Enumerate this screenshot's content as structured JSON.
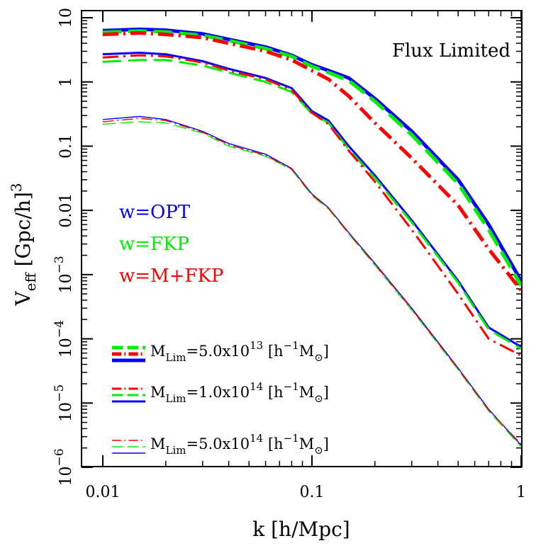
{
  "chart_data": {
    "type": "line",
    "title": "",
    "annotation": "Flux Limited",
    "xlabel": "k [h/Mpc]",
    "ylabel": "V_eff [Gpc/h]^3",
    "xscale": "log",
    "yscale": "log",
    "xlim": [
      0.01,
      1
    ],
    "ylim": [
      1e-06,
      10
    ],
    "x_ticks": [
      {
        "value": 0.01,
        "label": "0.01"
      },
      {
        "value": 0.1,
        "label": "0.1"
      },
      {
        "value": 1,
        "label": "1"
      }
    ],
    "y_ticks": [
      {
        "value": 10,
        "label": "10",
        "exp": ""
      },
      {
        "value": 1,
        "label": "1",
        "exp": ""
      },
      {
        "value": 0.1,
        "label": "0.1",
        "exp": ""
      },
      {
        "value": 0.01,
        "label": "0.01",
        "exp": ""
      },
      {
        "value": 0.001,
        "label": "10",
        "exp": "−3"
      },
      {
        "value": 0.0001,
        "label": "10",
        "exp": "−4"
      },
      {
        "value": 1e-05,
        "label": "10",
        "exp": "−5"
      },
      {
        "value": 1e-06,
        "label": "10",
        "exp": "−6"
      }
    ],
    "weight_legend": [
      {
        "label": "w=OPT",
        "color": "#0000ff"
      },
      {
        "label": "w=FKP",
        "color": "#00ee00"
      },
      {
        "label": "w=M+FKP",
        "color": "#ff0000"
      }
    ],
    "mass_legend": [
      {
        "label_main": "M",
        "label_sub": "Lim",
        "label_value": "=5.0x10",
        "label_exp": "13",
        "label_unit": "[h",
        "label_unit_exp": "−1",
        "label_unit_tail": "M",
        "label_unit_sub": "⊙",
        "label_close": "]",
        "width": "thick"
      },
      {
        "label_main": "M",
        "label_sub": "Lim",
        "label_value": "=1.0x10",
        "label_exp": "14",
        "label_unit": "[h",
        "label_unit_exp": "−1",
        "label_unit_tail": "M",
        "label_unit_sub": "⊙",
        "label_close": "]",
        "width": "medium"
      },
      {
        "label_main": "M",
        "label_sub": "Lim",
        "label_value": "=5.0x10",
        "label_exp": "14",
        "label_unit": "[h",
        "label_unit_exp": "−1",
        "label_unit_tail": "M",
        "label_unit_sub": "⊙",
        "label_close": "]",
        "width": "thin"
      }
    ],
    "x": [
      0.01,
      0.015,
      0.02,
      0.03,
      0.04,
      0.06,
      0.08,
      0.1,
      0.12,
      0.15,
      0.2,
      0.3,
      0.5,
      0.7,
      1.0
    ],
    "series": [
      {
        "mass": "5.0x10^13",
        "weight": "OPT",
        "color": "#0000ff",
        "dash": "solid",
        "values": [
          6.3,
          6.6,
          6.4,
          5.6,
          4.6,
          3.5,
          2.6,
          1.85,
          1.5,
          1.15,
          0.55,
          0.17,
          0.03,
          0.006,
          0.0008
        ]
      },
      {
        "mass": "5.0x10^13",
        "weight": "FKP",
        "color": "#00ee00",
        "dash": "long-dash",
        "values": [
          5.9,
          6.2,
          6.0,
          5.3,
          4.4,
          3.3,
          2.5,
          1.75,
          1.4,
          1.05,
          0.5,
          0.15,
          0.026,
          0.005,
          0.00068
        ]
      },
      {
        "mass": "5.0x10^13",
        "weight": "M+FKP",
        "color": "#ff0000",
        "dash": "dash-dot",
        "values": [
          5.5,
          5.8,
          5.5,
          4.9,
          4.0,
          3.0,
          2.2,
          1.5,
          1.1,
          0.6,
          0.23,
          0.065,
          0.012,
          0.0025,
          0.00057
        ]
      },
      {
        "mass": "1.0x10^14",
        "weight": "OPT",
        "color": "#0000ff",
        "dash": "solid",
        "values": [
          2.7,
          2.85,
          2.7,
          2.1,
          1.6,
          1.15,
          0.8,
          0.35,
          0.25,
          0.1,
          0.035,
          0.007,
          0.0008,
          0.00015,
          7.5e-05
        ]
      },
      {
        "mass": "1.0x10^14",
        "weight": "FKP",
        "color": "#00ee00",
        "dash": "long-dash",
        "values": [
          2.05,
          2.2,
          2.2,
          1.8,
          1.4,
          1.0,
          0.7,
          0.32,
          0.23,
          0.09,
          0.032,
          0.0065,
          0.00075,
          0.00014,
          7e-05
        ]
      },
      {
        "mass": "1.0x10^14",
        "weight": "M+FKP",
        "color": "#ff0000",
        "dash": "dash-dot",
        "values": [
          2.4,
          2.6,
          2.5,
          2.0,
          1.5,
          1.1,
          0.75,
          0.33,
          0.22,
          0.085,
          0.028,
          0.005,
          0.0005,
          0.0001,
          5.5e-05
        ]
      },
      {
        "mass": "5.0x10^14",
        "weight": "OPT",
        "color": "#0000ff",
        "dash": "solid",
        "values": [
          0.26,
          0.29,
          0.26,
          0.17,
          0.11,
          0.075,
          0.045,
          0.018,
          0.011,
          0.0045,
          0.0015,
          0.0003,
          3.5e-05,
          8e-06,
          2.2e-06
        ]
      },
      {
        "mass": "5.0x10^14",
        "weight": "FKP",
        "color": "#00ee00",
        "dash": "long-dash",
        "values": [
          0.22,
          0.24,
          0.23,
          0.16,
          0.1,
          0.07,
          0.043,
          0.017,
          0.0105,
          0.0043,
          0.0014,
          0.00028,
          3.3e-05,
          7.5e-06,
          2.1e-06
        ]
      },
      {
        "mass": "5.0x10^14",
        "weight": "M+FKP",
        "color": "#ff0000",
        "dash": "dash-dot",
        "values": [
          0.24,
          0.27,
          0.25,
          0.165,
          0.105,
          0.072,
          0.044,
          0.0175,
          0.0108,
          0.0044,
          0.00145,
          0.00029,
          3.4e-05,
          7.8e-06,
          2.3e-06
        ]
      }
    ],
    "grid": false,
    "legend_placement": "left (weights) and bottom-left (mass limits)"
  }
}
